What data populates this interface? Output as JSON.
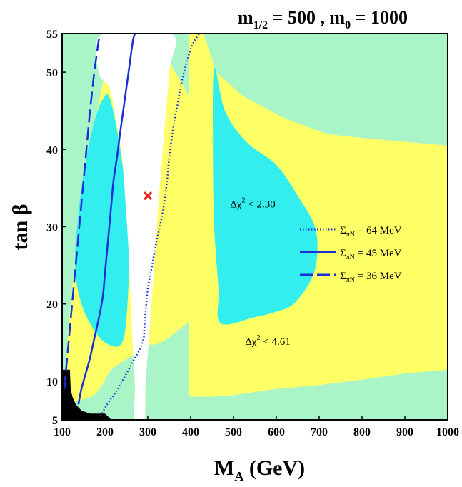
{
  "chart_data": {
    "type": "contour",
    "title": {
      "m_half_sym": "m",
      "m_half_sub": "1/2",
      "m_half_val": " = 500 ,  ",
      "m0_sym": "m",
      "m0_sub": "0",
      "m0_val": " = 1000"
    },
    "xlabel": {
      "main": "M",
      "sub": "A",
      "rest": " (GeV)"
    },
    "ylabel": "tan β",
    "xlim": [
      100,
      1000
    ],
    "ylim": [
      5,
      55
    ],
    "x_ticks": [
      "100",
      "200",
      "300",
      "400",
      "500",
      "600",
      "700",
      "800",
      "900",
      "1000"
    ],
    "y_ticks": [
      "5",
      "10",
      "20",
      "30",
      "40",
      "50",
      "55"
    ],
    "colors": {
      "background_region": "#aaf5c8",
      "chi2_461": "#ffff66",
      "chi2_230": "#33eeee",
      "excluded": "#ffffff",
      "forbidden": "#000000",
      "lines": "#1a2fd6",
      "best_fit": "#ee2222"
    },
    "annotations": [
      {
        "pre": "Δχ",
        "sup": "2",
        "post": " < 2.30",
        "x": 545,
        "y": 32.5
      },
      {
        "pre": "Δχ",
        "sup": "2",
        "post": " < 4.61",
        "x": 580,
        "y": 14.7
      }
    ],
    "best_fit_point": {
      "x": 300,
      "y": 34
    },
    "legend": [
      {
        "style": "dotted",
        "sym": "Σ",
        "sub": "πN",
        "rest": " = 64 MeV"
      },
      {
        "style": "solid",
        "sym": "Σ",
        "sub": "πN",
        "rest": " = 45 MeV"
      },
      {
        "style": "dashed",
        "sym": "Σ",
        "sub": "πN",
        "rest": " = 36 MeV"
      }
    ],
    "regions": {
      "chi2_461": [
        [
          110,
          10
        ],
        [
          112,
          15
        ],
        [
          120,
          20
        ],
        [
          135,
          28
        ],
        [
          150,
          35
        ],
        [
          170,
          41
        ],
        [
          185,
          46
        ],
        [
          200,
          50
        ],
        [
          208,
          55
        ],
        [
          340,
          55
        ],
        [
          345,
          52
        ],
        [
          385,
          48
        ],
        [
          430,
          43
        ],
        [
          460,
          36
        ],
        [
          470,
          28
        ],
        [
          460,
          22
        ],
        [
          420,
          19
        ],
        [
          380,
          17
        ],
        [
          330,
          15
        ],
        [
          290,
          14.5
        ],
        [
          255,
          13
        ],
        [
          215,
          11.5
        ],
        [
          180,
          8.5
        ],
        [
          140,
          7.5
        ],
        [
          110,
          7.5
        ]
      ],
      "chi2_461_right": [
        [
          430,
          55
        ],
        [
          460,
          50
        ],
        [
          520,
          47
        ],
        [
          620,
          44
        ],
        [
          720,
          42
        ],
        [
          800,
          41.5
        ],
        [
          900,
          41
        ],
        [
          1000,
          40.5
        ],
        [
          1000,
          11.5
        ],
        [
          900,
          11
        ],
        [
          800,
          10.2
        ],
        [
          700,
          9.5
        ],
        [
          600,
          9
        ],
        [
          500,
          8.2
        ],
        [
          450,
          8
        ],
        [
          395,
          8
        ],
        [
          395,
          55
        ]
      ],
      "chi2_230_left": [
        [
          130,
          25
        ],
        [
          135,
          30
        ],
        [
          145,
          35
        ],
        [
          160,
          40
        ],
        [
          180,
          44.5
        ],
        [
          195,
          46.5
        ],
        [
          210,
          46.8
        ],
        [
          230,
          42
        ],
        [
          245,
          36
        ],
        [
          252,
          30
        ],
        [
          256,
          25
        ],
        [
          250,
          18
        ],
        [
          240,
          15
        ],
        [
          220,
          14.5
        ],
        [
          190,
          15.5
        ],
        [
          160,
          18
        ],
        [
          140,
          21
        ]
      ],
      "chi2_230_right": [
        [
          455,
          50.5
        ],
        [
          480,
          45
        ],
        [
          530,
          41
        ],
        [
          600,
          38
        ],
        [
          650,
          34
        ],
        [
          690,
          30
        ],
        [
          695,
          26
        ],
        [
          680,
          23
        ],
        [
          640,
          20
        ],
        [
          600,
          19
        ],
        [
          550,
          18.3
        ],
        [
          470,
          17.5
        ],
        [
          465,
          22
        ],
        [
          455,
          30
        ],
        [
          452,
          40
        ]
      ],
      "excluded": [
        [
          195,
          55
        ],
        [
          185,
          50
        ],
        [
          210,
          48
        ],
        [
          225,
          44
        ],
        [
          240,
          39
        ],
        [
          248,
          33
        ],
        [
          255,
          27
        ],
        [
          260,
          20
        ],
        [
          265,
          14
        ],
        [
          270,
          9
        ],
        [
          268,
          5
        ],
        [
          292,
          5
        ],
        [
          295,
          10
        ],
        [
          305,
          17
        ],
        [
          315,
          25
        ],
        [
          325,
          33
        ],
        [
          338,
          42
        ],
        [
          350,
          50
        ],
        [
          355,
          55
        ]
      ],
      "forbidden": [
        [
          100,
          5
        ],
        [
          100,
          11.5
        ],
        [
          118,
          11.5
        ],
        [
          120,
          9
        ],
        [
          124,
          8
        ],
        [
          132,
          7
        ],
        [
          145,
          6.2
        ],
        [
          165,
          5.8
        ],
        [
          200,
          5.8
        ],
        [
          210,
          5.3
        ],
        [
          215,
          5
        ]
      ]
    },
    "series": [
      {
        "name": "Σ_πN = 64 MeV",
        "style": "dotted",
        "x": [
          190,
          205,
          220,
          235,
          250,
          260,
          270,
          280,
          290,
          292,
          295,
          300,
          310,
          320,
          335,
          345,
          350,
          360,
          370,
          380,
          400,
          420
        ],
        "y": [
          5.5,
          7,
          8.2,
          9.5,
          11,
          12,
          13,
          14,
          15.5,
          17,
          19,
          22,
          25,
          28,
          32,
          36,
          39,
          43,
          46,
          49,
          53,
          55
        ]
      },
      {
        "name": "Σ_πN = 45 MeV",
        "style": "solid",
        "x": [
          138,
          145,
          155,
          165,
          175,
          185,
          195,
          200,
          205,
          210,
          215,
          220,
          228,
          235,
          245,
          255,
          265,
          270
        ],
        "y": [
          7,
          9,
          11,
          13,
          15.5,
          18,
          21,
          24,
          27,
          30,
          33,
          36,
          39,
          42,
          46,
          50,
          54,
          55
        ]
      },
      {
        "name": "Σ_πN = 36 MeV",
        "style": "dashed",
        "x": [
          105,
          110,
          115,
          120,
          125,
          130,
          135,
          140,
          145,
          150,
          155,
          160,
          165,
          170,
          175,
          180,
          185,
          190
        ],
        "y": [
          9,
          12,
          15,
          18,
          21,
          24,
          27,
          30,
          33,
          36,
          39,
          42,
          45,
          47.5,
          50,
          52,
          54,
          55
        ]
      }
    ]
  }
}
